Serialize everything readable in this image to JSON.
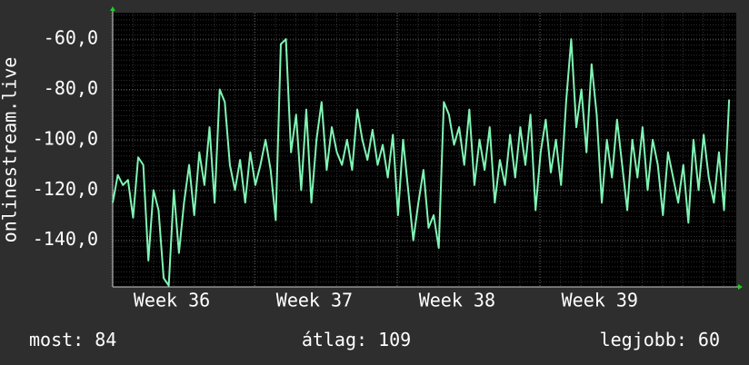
{
  "chart_data": {
    "type": "line",
    "y_label": "onlinestream.live",
    "x": [
      0,
      0.25,
      0.5,
      0.75,
      1,
      1.25,
      1.5,
      1.75,
      2,
      2.25,
      2.5,
      2.75,
      3,
      3.25,
      3.5,
      3.75,
      4,
      4.25,
      4.5,
      4.75,
      5,
      5.25,
      5.5,
      5.75,
      6,
      6.25,
      6.5,
      6.75,
      7,
      7.25,
      7.5,
      7.75,
      8,
      8.25,
      8.5,
      8.75,
      9,
      9.25,
      9.5,
      9.75,
      10,
      10.25,
      10.5,
      10.75,
      11,
      11.25,
      11.5,
      11.75,
      12,
      12.25,
      12.5,
      12.75,
      13,
      13.25,
      13.5,
      13.75,
      14,
      14.25,
      14.5,
      14.75,
      15,
      15.25,
      15.5,
      15.75,
      16,
      16.25,
      16.5,
      16.75,
      17,
      17.25,
      17.5,
      17.75,
      18,
      18.25,
      18.5,
      18.75,
      19,
      19.25,
      19.5,
      19.75,
      20,
      20.25,
      20.5,
      20.75,
      21,
      21.25,
      21.5,
      21.75,
      22,
      22.25,
      22.5,
      22.75,
      23,
      23.25,
      23.5,
      23.75,
      24,
      24.25,
      24.5,
      24.75,
      25,
      25.25,
      25.5,
      25.75,
      26,
      26.25,
      26.5,
      26.75,
      27,
      27.25,
      27.5,
      27.75,
      28,
      28.25,
      28.5,
      28.75,
      29,
      29.25,
      29.5,
      29.75,
      30,
      30.25
    ],
    "series": [
      {
        "color": "#80f5b5",
        "values": [
          -125,
          -114,
          -118,
          -116,
          -131,
          -107,
          -110,
          -148,
          -120,
          -128,
          -155,
          -158,
          -120,
          -145,
          -125,
          -110,
          -130,
          -105,
          -118,
          -95,
          -125,
          -80,
          -85,
          -110,
          -120,
          -108,
          -125,
          -105,
          -118,
          -110,
          -100,
          -112,
          -132,
          -62,
          -60,
          -105,
          -90,
          -120,
          -88,
          -125,
          -100,
          -85,
          -112,
          -95,
          -105,
          -110,
          -100,
          -112,
          -88,
          -100,
          -108,
          -96,
          -110,
          -102,
          -115,
          -98,
          -130,
          -100,
          -120,
          -140,
          -125,
          -112,
          -135,
          -130,
          -143,
          -85,
          -90,
          -102,
          -95,
          -110,
          -88,
          -118,
          -100,
          -112,
          -95,
          -125,
          -108,
          -118,
          -98,
          -115,
          -95,
          -110,
          -90,
          -128,
          -105,
          -92,
          -113,
          -100,
          -118,
          -85,
          -60,
          -95,
          -80,
          -105,
          -70,
          -90,
          -125,
          -100,
          -115,
          -92,
          -110,
          -128,
          -100,
          -115,
          -95,
          -120,
          -100,
          -110,
          -130,
          -105,
          -115,
          -125,
          -110,
          -133,
          -100,
          -120,
          -98,
          -115,
          -125,
          -105,
          -128,
          -84
        ]
      }
    ],
    "xlim": [
      0,
      30.6
    ],
    "xticks": [
      {
        "value": 2.9,
        "label": "Week 36"
      },
      {
        "value": 9.9,
        "label": "Week 37"
      },
      {
        "value": 16.9,
        "label": "Week 38"
      },
      {
        "value": 23.9,
        "label": "Week 39"
      }
    ],
    "ylim": [
      -158.5,
      -49.5
    ],
    "yticks": [
      {
        "value": -140,
        "label": "-140,0"
      },
      {
        "value": -120,
        "label": "-120,0"
      },
      {
        "value": -100,
        "label": "-100,0"
      },
      {
        "value": -80,
        "label": "-80,0"
      },
      {
        "value": -60,
        "label": "-60,0"
      }
    ],
    "grid": true,
    "footer": [
      {
        "label": "most:",
        "value": 84
      },
      {
        "label": "átlag:",
        "value": 109
      },
      {
        "label": "legjobb:",
        "value": 60
      }
    ]
  }
}
